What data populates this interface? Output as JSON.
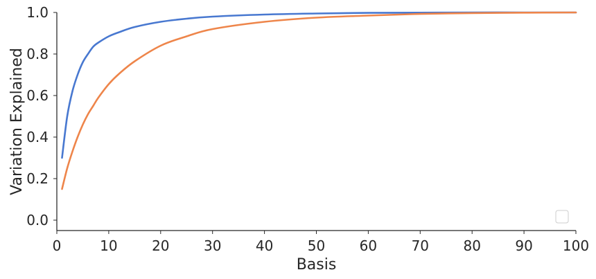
{
  "chart_data": {
    "type": "line",
    "title": "",
    "xlabel": "Basis",
    "ylabel": "Variation Explained",
    "xlim": [
      0,
      100
    ],
    "ylim": [
      -0.05,
      1.0
    ],
    "xticks": [
      0,
      10,
      20,
      30,
      40,
      50,
      60,
      70,
      80,
      90,
      100
    ],
    "yticks": [
      0.0,
      0.2,
      0.4,
      0.6,
      0.8,
      1.0
    ],
    "xtick_labels": [
      "0",
      "10",
      "20",
      "30",
      "40",
      "50",
      "60",
      "70",
      "80",
      "90",
      "100"
    ],
    "ytick_labels": [
      "0.0",
      "0.2",
      "0.4",
      "0.6",
      "0.8",
      "1.0"
    ],
    "grid": false,
    "legend": {
      "placement": "lower-right",
      "entries": []
    },
    "x": [
      1,
      2,
      3,
      4,
      5,
      6,
      7,
      8,
      10,
      12,
      15,
      20,
      25,
      30,
      40,
      50,
      60,
      70,
      80,
      90,
      100
    ],
    "series": [
      {
        "color": "#4878d0",
        "values": [
          0.3,
          0.5,
          0.62,
          0.7,
          0.76,
          0.8,
          0.835,
          0.855,
          0.885,
          0.905,
          0.93,
          0.955,
          0.97,
          0.98,
          0.99,
          0.995,
          0.998,
          0.999,
          1.0,
          1.0,
          1.0
        ]
      },
      {
        "color": "#ee854a",
        "values": [
          0.15,
          0.25,
          0.33,
          0.4,
          0.46,
          0.51,
          0.55,
          0.59,
          0.655,
          0.705,
          0.765,
          0.84,
          0.885,
          0.92,
          0.955,
          0.975,
          0.985,
          0.993,
          0.997,
          0.999,
          1.0
        ]
      }
    ]
  }
}
